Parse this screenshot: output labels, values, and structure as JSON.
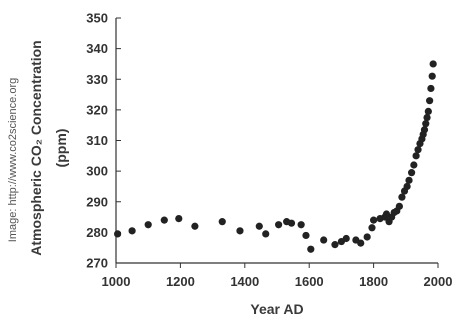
{
  "credit": "Image: http://www.co2science.org",
  "chart_data": {
    "type": "scatter",
    "title": "",
    "xlabel": "Year AD",
    "ylabel_line1": "Atmospheric CO₂ Concentration",
    "ylabel_line2": "(ppm)",
    "xlim": [
      1000,
      2000
    ],
    "ylim": [
      270,
      350
    ],
    "x_ticks": [
      1000,
      1200,
      1400,
      1600,
      1800,
      2000
    ],
    "y_ticks": [
      270,
      280,
      290,
      300,
      310,
      320,
      330,
      340,
      350
    ],
    "grid": false,
    "marker_color": "#222222",
    "points": [
      {
        "x": 1005,
        "y": 279.5
      },
      {
        "x": 1050,
        "y": 280.5
      },
      {
        "x": 1100,
        "y": 282.5
      },
      {
        "x": 1150,
        "y": 284
      },
      {
        "x": 1195,
        "y": 284.5
      },
      {
        "x": 1245,
        "y": 282
      },
      {
        "x": 1330,
        "y": 283.5
      },
      {
        "x": 1385,
        "y": 280.5
      },
      {
        "x": 1445,
        "y": 282
      },
      {
        "x": 1465,
        "y": 279.5
      },
      {
        "x": 1505,
        "y": 282.5
      },
      {
        "x": 1530,
        "y": 283.5
      },
      {
        "x": 1545,
        "y": 283
      },
      {
        "x": 1575,
        "y": 282.5
      },
      {
        "x": 1590,
        "y": 279
      },
      {
        "x": 1605,
        "y": 274.5
      },
      {
        "x": 1645,
        "y": 277.5
      },
      {
        "x": 1680,
        "y": 276
      },
      {
        "x": 1700,
        "y": 277
      },
      {
        "x": 1715,
        "y": 278
      },
      {
        "x": 1745,
        "y": 277.5
      },
      {
        "x": 1760,
        "y": 276.5
      },
      {
        "x": 1780,
        "y": 278.5
      },
      {
        "x": 1795,
        "y": 281.5
      },
      {
        "x": 1800,
        "y": 284
      },
      {
        "x": 1820,
        "y": 284.5
      },
      {
        "x": 1835,
        "y": 285
      },
      {
        "x": 1840,
        "y": 286
      },
      {
        "x": 1848,
        "y": 283.5
      },
      {
        "x": 1856,
        "y": 285
      },
      {
        "x": 1864,
        "y": 286.5
      },
      {
        "x": 1872,
        "y": 287
      },
      {
        "x": 1880,
        "y": 288.5
      },
      {
        "x": 1888,
        "y": 291.5
      },
      {
        "x": 1896,
        "y": 293.5
      },
      {
        "x": 1904,
        "y": 295
      },
      {
        "x": 1910,
        "y": 297
      },
      {
        "x": 1918,
        "y": 299.5
      },
      {
        "x": 1925,
        "y": 302
      },
      {
        "x": 1932,
        "y": 305
      },
      {
        "x": 1938,
        "y": 307
      },
      {
        "x": 1944,
        "y": 309
      },
      {
        "x": 1950,
        "y": 310.5
      },
      {
        "x": 1954,
        "y": 312
      },
      {
        "x": 1958,
        "y": 313.5
      },
      {
        "x": 1962,
        "y": 315.5
      },
      {
        "x": 1966,
        "y": 317.5
      },
      {
        "x": 1970,
        "y": 319.5
      },
      {
        "x": 1974,
        "y": 323
      },
      {
        "x": 1978,
        "y": 327
      },
      {
        "x": 1982,
        "y": 331
      },
      {
        "x": 1985,
        "y": 335
      }
    ]
  }
}
